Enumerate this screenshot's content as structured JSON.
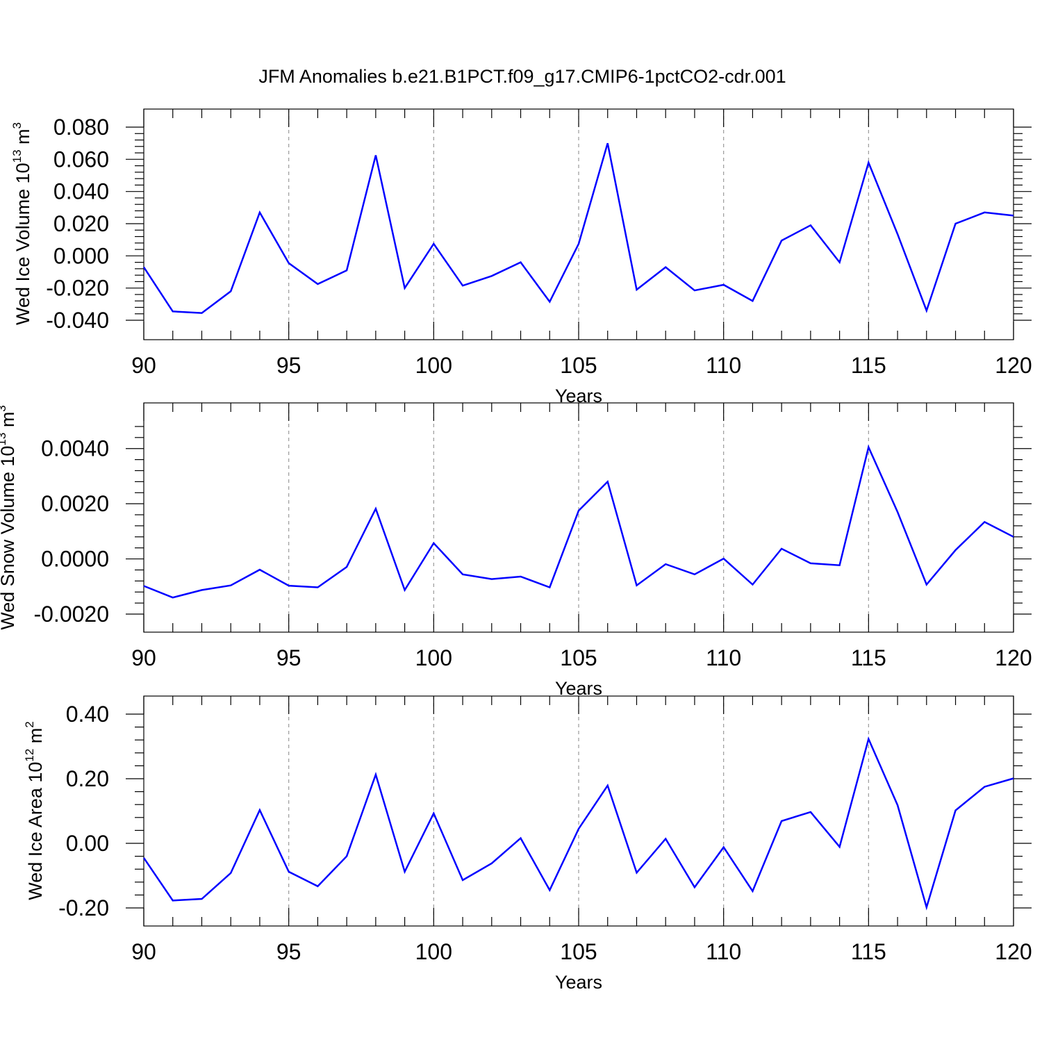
{
  "title": "JFM Anomalies b.e21.B1PCT.f09_g17.CMIP6-1pctCO2-cdr.001",
  "colors": {
    "line": "#0000ff",
    "axis": "#000000",
    "grid": "#999999"
  },
  "chart_data": [
    {
      "type": "line",
      "ylabel": {
        "text": "Wed Ice Volume 10",
        "sup": "13",
        "unit": " m",
        "unit_sup": "3"
      },
      "xlabel": "Years",
      "xlim": [
        90,
        120
      ],
      "ylim": [
        -0.04,
        0.08
      ],
      "xticks": [
        90,
        95,
        100,
        105,
        110,
        115,
        120
      ],
      "xtick_labels": [
        "90",
        "95",
        "100",
        "105",
        "110",
        "115",
        "120"
      ],
      "yticks": [
        -0.04,
        -0.02,
        0.0,
        0.02,
        0.04,
        0.06,
        0.08
      ],
      "ytick_labels": [
        "-0.040",
        "-0.020",
        "0.000",
        "0.020",
        "0.040",
        "0.060",
        "0.080"
      ],
      "grid": "dashed vertical at major x ticks",
      "x": [
        90,
        91,
        92,
        93,
        94,
        95,
        96,
        97,
        98,
        99,
        100,
        101,
        102,
        103,
        104,
        105,
        106,
        107,
        108,
        109,
        110,
        111,
        112,
        113,
        114,
        115,
        116,
        117,
        118,
        119,
        120
      ],
      "series": [
        {
          "values": [
            -0.007,
            -0.0345,
            -0.0355,
            -0.022,
            0.027,
            -0.0045,
            -0.0175,
            -0.009,
            0.0625,
            -0.02,
            0.0075,
            -0.0185,
            -0.0125,
            -0.004,
            -0.0285,
            0.0075,
            0.07,
            -0.021,
            -0.007,
            -0.0215,
            -0.018,
            -0.028,
            0.0095,
            0.019,
            -0.004,
            0.058,
            0.0135,
            -0.034,
            0.02,
            0.027,
            0.025
          ]
        }
      ]
    },
    {
      "type": "line",
      "ylabel": {
        "text": "Wed Snow Volume 10",
        "sup": "13",
        "unit": " m",
        "unit_sup": "3"
      },
      "xlabel": "Years",
      "xlim": [
        90,
        120
      ],
      "ylim": [
        -0.002,
        0.005
      ],
      "xticks": [
        90,
        95,
        100,
        105,
        110,
        115,
        120
      ],
      "xtick_labels": [
        "90",
        "95",
        "100",
        "105",
        "110",
        "115",
        "120"
      ],
      "yticks": [
        -0.002,
        0.0,
        0.002,
        0.004
      ],
      "ytick_labels": [
        "-0.0020",
        "0.0000",
        "0.0020",
        "0.0040"
      ],
      "grid": "dashed vertical at major x ticks",
      "x": [
        90,
        91,
        92,
        93,
        94,
        95,
        96,
        97,
        98,
        99,
        100,
        101,
        102,
        103,
        104,
        105,
        106,
        107,
        108,
        109,
        110,
        111,
        112,
        113,
        114,
        115,
        116,
        117,
        118,
        119,
        120
      ],
      "series": [
        {
          "values": [
            -0.00098,
            -0.0014,
            -0.00113,
            -0.00096,
            -0.00039,
            -0.00097,
            -0.00103,
            -0.00029,
            0.00182,
            -0.00113,
            0.00057,
            -0.00056,
            -0.00073,
            -0.00064,
            -0.00103,
            0.00175,
            0.0028,
            -0.00096,
            -0.00019,
            -0.00056,
            1e-05,
            -0.00093,
            0.00037,
            -0.00016,
            -0.00023,
            0.00405,
            0.0017,
            -0.00093,
            0.00032,
            0.00134,
            0.0008
          ]
        }
      ]
    },
    {
      "type": "line",
      "ylabel": {
        "text": "Wed Ice Area 10",
        "sup": "12",
        "unit": " m",
        "unit_sup": "2"
      },
      "xlabel": "Years",
      "xlim": [
        90,
        120
      ],
      "ylim": [
        -0.2,
        0.4
      ],
      "xticks": [
        90,
        95,
        100,
        105,
        110,
        115,
        120
      ],
      "xtick_labels": [
        "90",
        "95",
        "100",
        "105",
        "110",
        "115",
        "120"
      ],
      "yticks": [
        -0.2,
        0.0,
        0.2,
        0.4
      ],
      "ytick_labels": [
        "-0.20",
        "0.00",
        "0.20",
        "0.40"
      ],
      "grid": "dashed vertical at major x ticks",
      "x": [
        90,
        91,
        92,
        93,
        94,
        95,
        96,
        97,
        98,
        99,
        100,
        101,
        102,
        103,
        104,
        105,
        106,
        107,
        108,
        109,
        110,
        111,
        112,
        113,
        114,
        115,
        116,
        117,
        118,
        119,
        120
      ],
      "series": [
        {
          "values": [
            -0.045,
            -0.177,
            -0.172,
            -0.092,
            0.103,
            -0.088,
            -0.133,
            -0.04,
            0.213,
            -0.088,
            0.093,
            -0.114,
            -0.062,
            0.016,
            -0.145,
            0.045,
            0.179,
            -0.091,
            0.014,
            -0.136,
            -0.012,
            -0.148,
            0.069,
            0.097,
            -0.011,
            0.323,
            0.118,
            -0.198,
            0.102,
            0.175,
            0.201
          ]
        }
      ]
    }
  ]
}
